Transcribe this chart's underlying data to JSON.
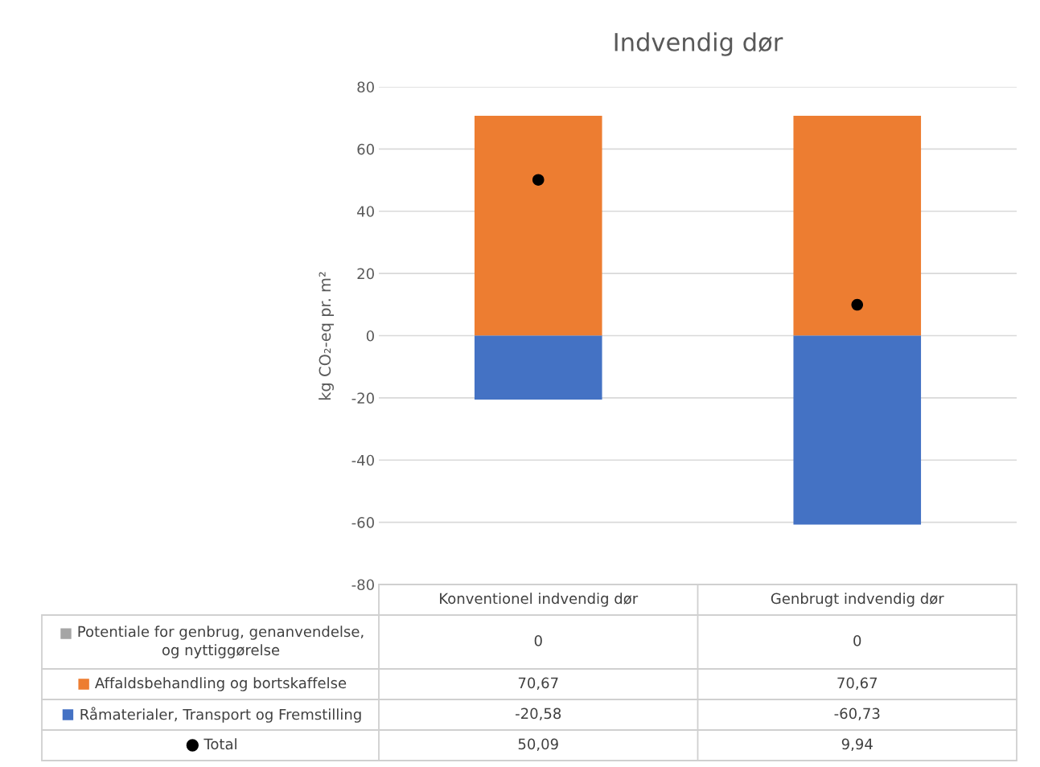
{
  "chart_data": {
    "type": "bar",
    "title": "Indvendig dør",
    "ylabel": "kg CO₂-eq pr. m²",
    "categories": [
      "Konventionel indvendig dør",
      "Genbrugt indvendig dør"
    ],
    "stacked": true,
    "ylim": [
      -80,
      80
    ],
    "yticks": [
      -80,
      -60,
      -40,
      -20,
      0,
      20,
      40,
      60,
      80
    ],
    "grid": "y",
    "legend": "bottom",
    "data_labels": true,
    "series": [
      {
        "name": "Potentiale for genbrug, genanvendelse, og nyttiggørelse",
        "color": "#a5a5a5",
        "values": [
          0,
          0
        ],
        "value_labels": [
          "0",
          "0"
        ]
      },
      {
        "name": "Affaldsbehandling og bortskaffelse",
        "color": "#ed7d31",
        "values": [
          70.67,
          70.67
        ],
        "value_labels": [
          "70,67",
          "70,67"
        ]
      },
      {
        "name": "Råmaterialer, Transport og Fremstilling",
        "color": "#4472c4",
        "values": [
          -20.58,
          -60.73
        ],
        "value_labels": [
          "-20,58",
          "-60,73"
        ]
      },
      {
        "name": "Total",
        "type": "scatter",
        "marker": "circle",
        "color": "#000000",
        "values": [
          50.09,
          9.94
        ],
        "value_labels": [
          "50,09",
          "9,94"
        ]
      }
    ]
  }
}
